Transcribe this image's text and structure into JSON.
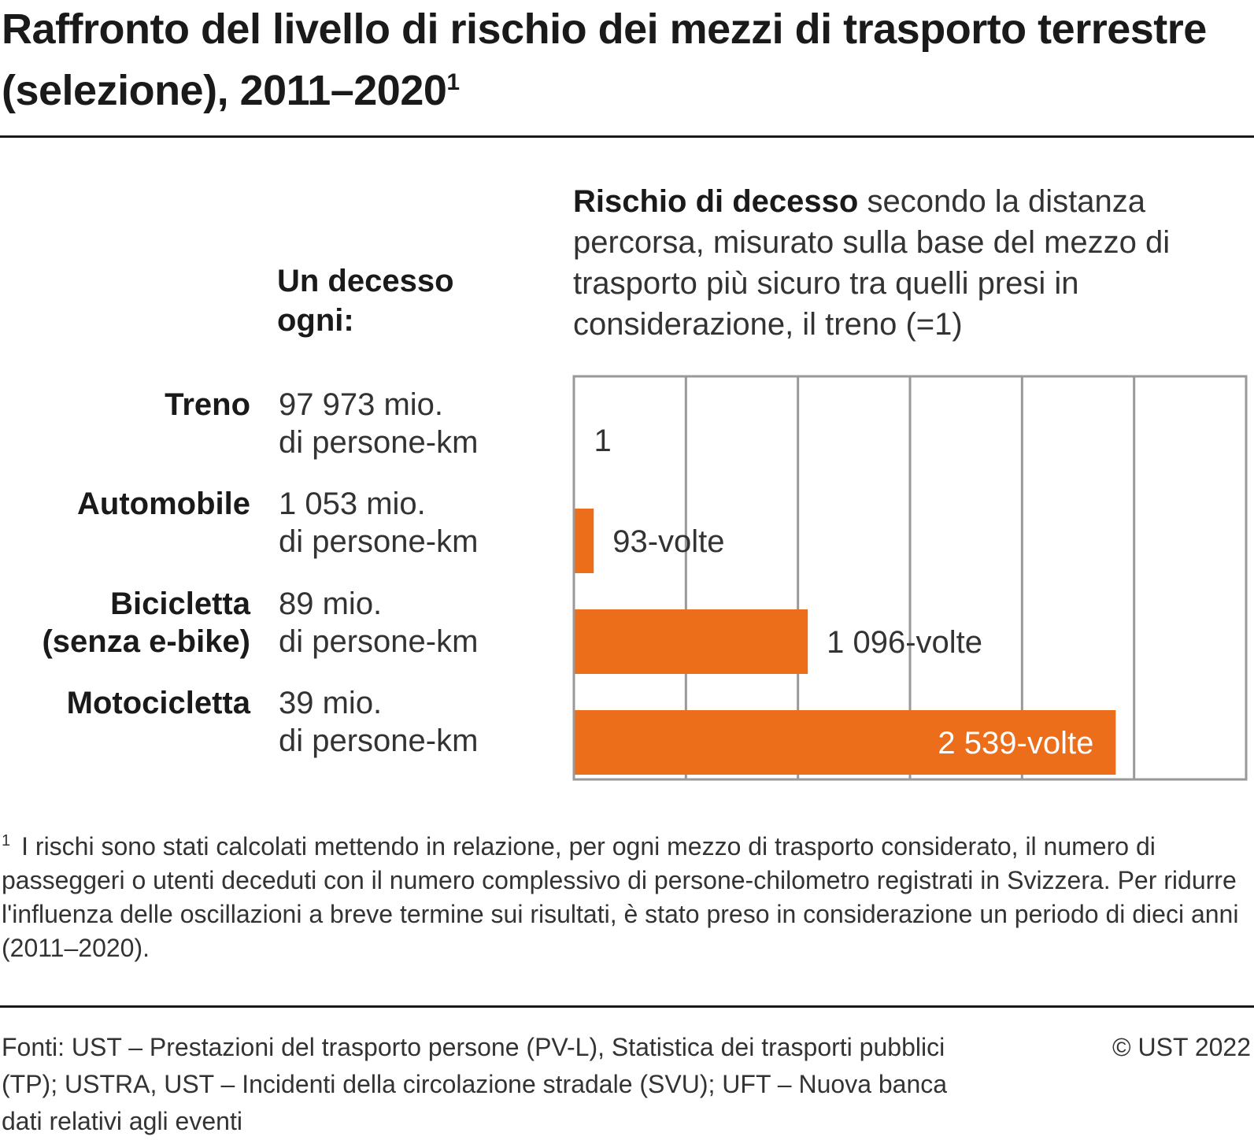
{
  "title": {
    "main": "Raffronto del livello di rischio dei mezzi di trasporto terrestre (selezione), 2011–2020",
    "footnote_marker": "1"
  },
  "column_header": "Un decesso ogni:",
  "chart_description": {
    "bold": "Rischio di decesso",
    "rest": " secondo la distanza percorsa, misurato sulla base del mezzo di trasporto più sicuro tra quelli presi in considerazione, il treno (=1)"
  },
  "rows": [
    {
      "label_line1": "Treno",
      "label_line2": "",
      "value_line1": "97 973 mio.",
      "value_line2": "di persone-km"
    },
    {
      "label_line1": "Automobile",
      "label_line2": "",
      "value_line1": "1 053 mio.",
      "value_line2": "di persone-km"
    },
    {
      "label_line1": "Bicicletta",
      "label_line2": "(senza e-bike)",
      "value_line1": "89 mio.",
      "value_line2": "di persone-km"
    },
    {
      "label_line1": "Motocicletta",
      "label_line2": "",
      "value_line1": "39 mio.",
      "value_line2": "di persone-km"
    }
  ],
  "chart_data": {
    "type": "bar",
    "orientation": "horizontal",
    "categories": [
      "Treno",
      "Automobile",
      "Bicicletta (senza e-bike)",
      "Motocicletta"
    ],
    "values": [
      1,
      93,
      1096,
      2539
    ],
    "data_labels": [
      "1",
      "93-volte",
      "1 096-volte",
      "2 539-volte"
    ],
    "xlim": [
      0,
      3150
    ],
    "grid": true,
    "bar_color": "#ec6d1a",
    "grid_color": "#999999"
  },
  "footnote": {
    "marker": "1",
    "text": "I rischi sono stati calcolati mettendo in relazione, per ogni mezzo di trasporto considerato, il numero di passeggeri o utenti deceduti con il numero complessivo di persone-chilometro registrati in Svizzera. Per ridurre l'influenza delle oscillazioni a breve termine sui risultati, è stato preso in considerazione un periodo di dieci anni (2011–2020)."
  },
  "sources": "Fonti: UST – Prestazioni del trasporto persone (PV-L), Statistica dei trasporti pubblici (TP); USTRA, UST – Incidenti della circolazione stradale (SVU); UFT – Nuova banca dati relativi agli eventi",
  "copyright": "© UST 2022"
}
